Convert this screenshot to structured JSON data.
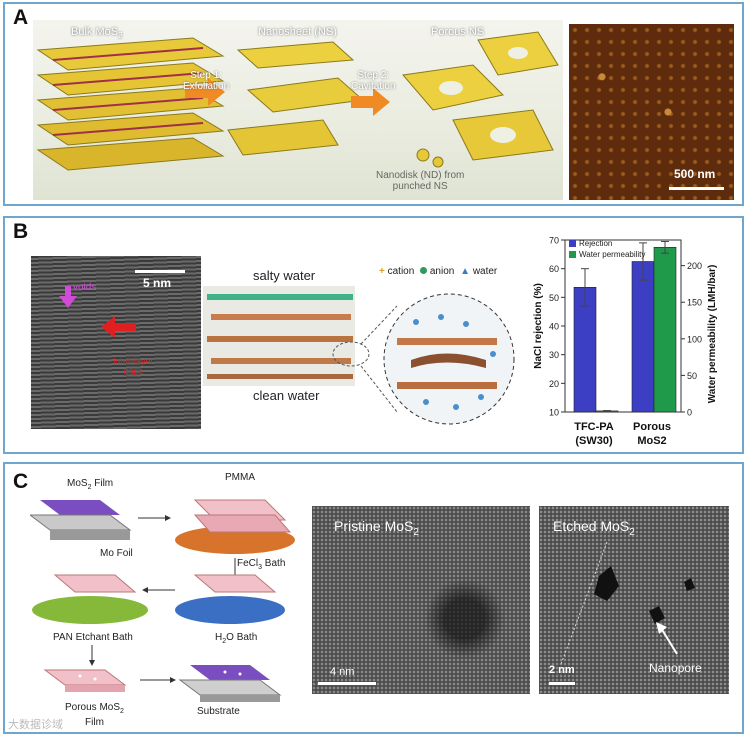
{
  "panelA": {
    "label": "A",
    "bulk": "Bulk MoS",
    "bulk_sub": "2",
    "nanosheet": "Nanosheet (NS)",
    "porous": "Porous NS",
    "step1a": "Step 1:",
    "step1b": "Exfoliation",
    "step2a": "Step 2:",
    "step2b": "Cavitation",
    "nanodisk1": "Nanodisk (ND) from",
    "nanodisk2": "punched NS",
    "scale": "500 nm"
  },
  "panelB": {
    "label": "B",
    "scale": "5 nm",
    "voids": "voids",
    "interlayer1": "Inter-layer",
    "interlayer2": "gaps",
    "salty": "salty water",
    "clean": "clean water",
    "legend_cation": "cation",
    "legend_anion": "anion",
    "legend_water": "water"
  },
  "chart_data": {
    "type": "bar",
    "categories": [
      "TFC-PA (SW30)",
      "Porous MoS2"
    ],
    "category_lines": [
      [
        "TFC-PA",
        "(SW30)"
      ],
      [
        "Porous",
        "MoS2"
      ]
    ],
    "series": [
      {
        "name": "Rejection",
        "values": [
          53.5,
          62.5
        ],
        "errors": [
          6.5,
          6.5
        ],
        "color": "#3c3fc4"
      },
      {
        "name": "Water permeability",
        "values": [
          1.5,
          225
        ],
        "errors": [
          0.5,
          8
        ],
        "color": "#1f9a4a"
      }
    ],
    "ylabel": "NaCl rejection (%)",
    "ylim": [
      10,
      70
    ],
    "yticks": [
      10,
      20,
      30,
      40,
      50,
      60,
      70
    ],
    "y2label": "Water permeability (LMH/bar)",
    "y2lim": [
      0,
      235
    ],
    "y2ticks": [
      0,
      50,
      100,
      150,
      200
    ],
    "legend_position": "top-left"
  },
  "panelC": {
    "label": "C",
    "film": "MoS",
    "film_sub": "2",
    "film_suffix": " Film",
    "mofoil": "Mo Foil",
    "pmma": "PMMA",
    "fecl": "FeCl",
    "fecl_sub": "3",
    "fecl_suffix": " Bath",
    "h2o": "H",
    "h2o_sub": "2",
    "h2o_suffix": "O Bath",
    "pan": "PAN Etchant Bath",
    "porous": "Porous MoS",
    "porous_sub": "2",
    "porous_line2": "Film",
    "substrate": "Substrate",
    "pristine": "Pristine MoS",
    "pristine_sub": "2",
    "etched": "Etched MoS",
    "etched_sub": "2",
    "scale1": "4 nm",
    "scale2": "2 nm",
    "nanopore": "Nanopore"
  },
  "watermark": "大数据诊域"
}
